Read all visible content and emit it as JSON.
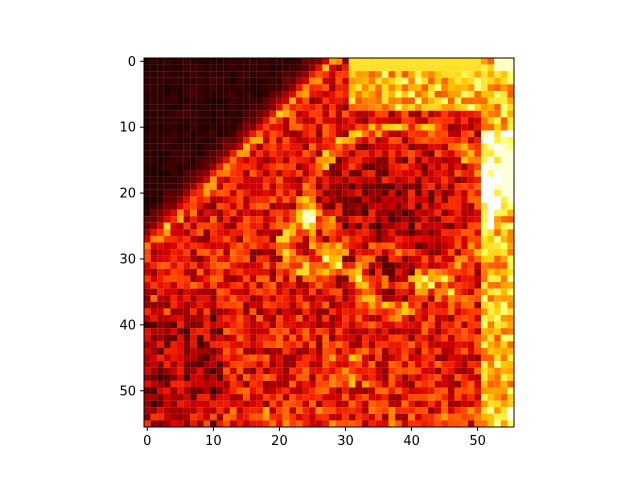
{
  "chart_data": {
    "type": "heatmap",
    "title": "",
    "xlabel": "",
    "ylabel": "",
    "colormap": "hot",
    "colormap_stops": [
      "#0b0000",
      "#400000",
      "#8a0000",
      "#d40000",
      "#ff3300",
      "#ff8000",
      "#ffcc00",
      "#ffff66",
      "#ffffff"
    ],
    "grid": false,
    "legend": "none",
    "image_shape": [
      56,
      56
    ],
    "xlim": [
      -0.5,
      55.5
    ],
    "ylim": [
      55.5,
      -0.5
    ],
    "y_axis_direction": "down",
    "xticks": [
      0,
      10,
      20,
      30,
      40,
      50
    ],
    "yticks": [
      0,
      10,
      20,
      30,
      40,
      50
    ],
    "xtick_labels": [
      "0",
      "10",
      "20",
      "30",
      "40",
      "50"
    ],
    "ytick_labels": [
      "0",
      "10",
      "20",
      "30",
      "40",
      "50"
    ],
    "value_range": [
      0,
      1
    ],
    "description": "Per-pixel intensity map (0..1) of a 56x56 image, rendered with the 'hot' colormap. Dark upper-left triangle, bright edges along the right border and top-right block, textured face-like structure in the center-lower region."
  }
}
